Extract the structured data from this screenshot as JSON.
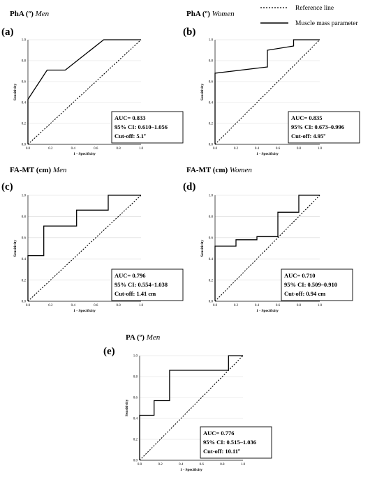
{
  "legend": {
    "reference": "Reference line",
    "muscle": "Muscle mass parameter"
  },
  "colors": {
    "line": "#000000",
    "grid": "#d9d9d9",
    "background": "#ffffff"
  },
  "chart_data": [
    {
      "type": "line",
      "letter": "(a)",
      "title": "PhA (º)",
      "subgroup": "Men",
      "xlabel": "1 - Specificity",
      "ylabel": "Sensitivity",
      "xlim": [
        0,
        1
      ],
      "ylim": [
        0,
        1
      ],
      "x_ticks": [
        "0.0",
        "0.2",
        "0.4",
        "0.6",
        "0.8",
        "1.0"
      ],
      "y_ticks": [
        "0.0",
        "0.2",
        "0.4",
        "0.6",
        "0.8",
        "1.0"
      ],
      "grid": true,
      "series": [
        {
          "name": "Muscle mass parameter",
          "x": [
            0,
            0,
            0.17,
            0.33,
            0.67,
            1.0
          ],
          "y": [
            0,
            0.43,
            0.71,
            0.71,
            1.0,
            1.0
          ]
        },
        {
          "name": "Reference line",
          "x": [
            0,
            1
          ],
          "y": [
            0,
            1
          ]
        }
      ],
      "stats": [
        "AUC= 0.833",
        "95% CI: 0.610–1.056",
        "Cut-off: 5.1º"
      ]
    },
    {
      "type": "line",
      "letter": "(b)",
      "title": "PhA (º)",
      "subgroup": "Women",
      "xlabel": "1 - Specificity",
      "ylabel": "Sensitivity",
      "xlim": [
        0,
        1
      ],
      "ylim": [
        0,
        1
      ],
      "x_ticks": [
        "0.0",
        "0.2",
        "0.4",
        "0.6",
        "0.8",
        "1.0"
      ],
      "y_ticks": [
        "0.0",
        "0.2",
        "0.4",
        "0.6",
        "0.8",
        "1.0"
      ],
      "grid": true,
      "series": [
        {
          "name": "Muscle mass parameter",
          "x": [
            0,
            0,
            0.5,
            0.5,
            0.75,
            0.75,
            1.0
          ],
          "y": [
            0,
            0.68,
            0.74,
            0.9,
            0.94,
            1.0,
            1.0
          ]
        },
        {
          "name": "Reference line",
          "x": [
            0,
            1
          ],
          "y": [
            0,
            1
          ]
        }
      ],
      "stats": [
        "AUC= 0.835",
        "95% CI: 0.673–0.996",
        "Cut-off: 4.95º"
      ]
    },
    {
      "type": "line",
      "letter": "(c)",
      "title": "FA-MT (cm)",
      "subgroup": "Men",
      "xlabel": "1 - Specificity",
      "ylabel": "Sensitivity",
      "xlim": [
        0,
        1
      ],
      "ylim": [
        0,
        1
      ],
      "x_ticks": [
        "0.0",
        "0.2",
        "0.4",
        "0.6",
        "0.8",
        "1.0"
      ],
      "y_ticks": [
        "0.0",
        "0.2",
        "0.4",
        "0.6",
        "0.8",
        "1.0"
      ],
      "grid": true,
      "series": [
        {
          "name": "Muscle mass parameter",
          "x": [
            0,
            0,
            0.14,
            0.14,
            0.43,
            0.43,
            0.71,
            0.71,
            1.0
          ],
          "y": [
            0,
            0.43,
            0.43,
            0.71,
            0.71,
            0.86,
            0.86,
            1.0,
            1.0
          ]
        },
        {
          "name": "Reference line",
          "x": [
            0,
            1
          ],
          "y": [
            0,
            1
          ]
        }
      ],
      "stats": [
        "AUC= 0.796",
        "95% CI: 0.554–1.038",
        "Cut-off: 1.41 cm"
      ]
    },
    {
      "type": "line",
      "letter": "(d)",
      "title": "FA-MT (cm)",
      "subgroup": "Women",
      "xlabel": "1 - Specificity",
      "ylabel": "Sensitivity",
      "xlim": [
        0,
        1
      ],
      "ylim": [
        0,
        1
      ],
      "x_ticks": [
        "0.0",
        "0.2",
        "0.4",
        "0.6",
        "0.8",
        "1.0"
      ],
      "y_ticks": [
        "0.0",
        "0.2",
        "0.4",
        "0.6",
        "0.8",
        "1.0"
      ],
      "grid": true,
      "series": [
        {
          "name": "Muscle mass parameter",
          "x": [
            0,
            0,
            0.2,
            0.2,
            0.4,
            0.4,
            0.6,
            0.6,
            0.8,
            0.8,
            1.0
          ],
          "y": [
            0,
            0.52,
            0.52,
            0.58,
            0.58,
            0.61,
            0.61,
            0.84,
            0.84,
            1.0,
            1.0
          ]
        },
        {
          "name": "Reference line",
          "x": [
            0,
            1
          ],
          "y": [
            0,
            1
          ]
        }
      ],
      "stats": [
        "AUC= 0.710",
        "95% CI: 0.509–0.910",
        "Cut-off: 0.94 cm"
      ]
    },
    {
      "type": "line",
      "letter": "(e)",
      "title": "PA (º)",
      "subgroup": "Men",
      "xlabel": "1 - Specificity",
      "ylabel": "Sensitivity",
      "xlim": [
        0,
        1
      ],
      "ylim": [
        0,
        1
      ],
      "x_ticks": [
        "0.0",
        "0.2",
        "0.4",
        "0.6",
        "0.8",
        "1.0"
      ],
      "y_ticks": [
        "0.0",
        "0.2",
        "0.4",
        "0.6",
        "0.8",
        "1.0"
      ],
      "grid": true,
      "series": [
        {
          "name": "Muscle mass parameter",
          "x": [
            0,
            0,
            0.14,
            0.14,
            0.29,
            0.29,
            0.86,
            0.86,
            1.0
          ],
          "y": [
            0,
            0.43,
            0.43,
            0.57,
            0.57,
            0.86,
            0.86,
            1.0,
            1.0
          ]
        },
        {
          "name": "Reference line",
          "x": [
            0,
            1
          ],
          "y": [
            0,
            1
          ]
        }
      ],
      "stats": [
        "AUC= 0.776",
        "95% CI: 0.515–1.036",
        "Cut-off: 10.11º"
      ]
    }
  ]
}
